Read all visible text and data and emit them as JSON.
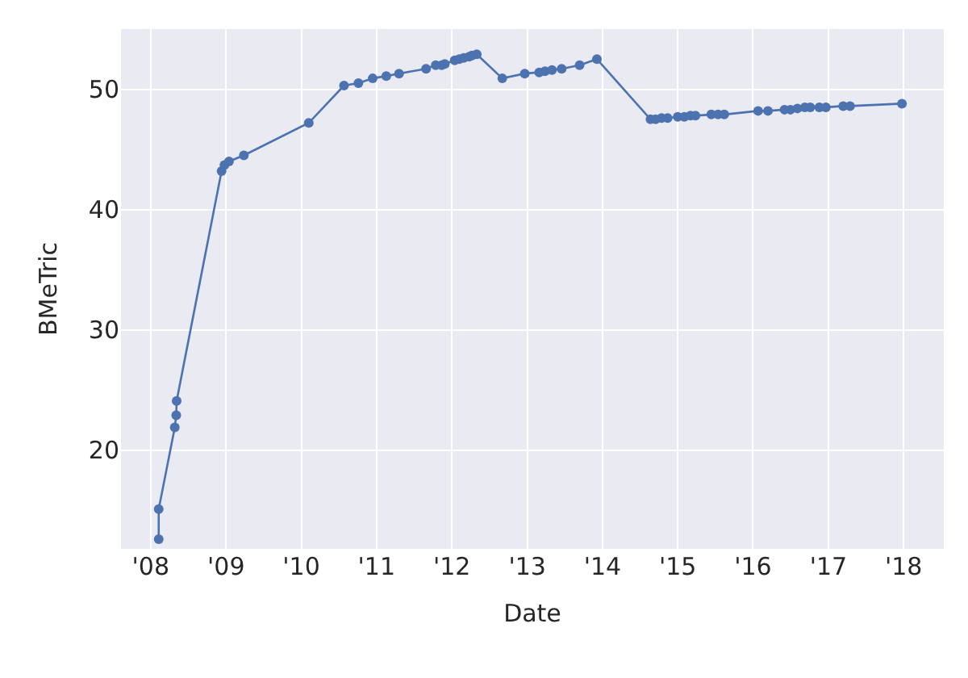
{
  "chart_data": {
    "type": "line",
    "xlabel": "Date",
    "ylabel": "BMeTric",
    "marker": "circle",
    "line_style": "solid",
    "grid": true,
    "x": [
      "2008-02-09",
      "2008-02-09",
      "2008-04-27",
      "2008-05-04",
      "2008-05-06",
      "2008-12-10",
      "2008-12-24",
      "2009-01-15",
      "2009-03-28",
      "2010-02-06",
      "2010-07-27",
      "2010-10-05",
      "2010-12-13",
      "2011-02-17",
      "2011-04-20",
      "2011-08-29",
      "2011-10-15",
      "2011-11-13",
      "2011-11-28",
      "2012-01-15",
      "2012-02-06",
      "2012-02-28",
      "2012-03-25",
      "2012-04-08",
      "2012-05-01",
      "2012-09-02",
      "2012-12-20",
      "2013-02-28",
      "2013-03-28",
      "2013-05-01",
      "2013-06-17",
      "2013-09-12",
      "2013-12-05",
      "2014-08-22",
      "2014-09-16",
      "2014-10-15",
      "2014-11-13",
      "2015-01-01",
      "2015-02-02",
      "2015-03-04",
      "2015-03-28",
      "2015-06-13",
      "2015-07-16",
      "2015-08-15",
      "2016-01-26",
      "2016-03-14",
      "2016-06-02",
      "2016-07-01",
      "2016-08-04",
      "2016-09-09",
      "2016-10-05",
      "2016-11-18",
      "2016-12-20",
      "2017-03-14",
      "2017-04-16",
      "2017-12-24"
    ],
    "series": [
      {
        "color": "#4c72b0",
        "values": [
          12.6,
          15.1,
          21.9,
          22.9,
          24.1,
          43.2,
          43.7,
          44.0,
          44.5,
          47.2,
          50.3,
          50.5,
          50.9,
          51.1,
          51.3,
          51.7,
          52.0,
          52.0,
          52.1,
          52.4,
          52.5,
          52.6,
          52.7,
          52.8,
          52.9,
          50.9,
          51.3,
          51.4,
          51.5,
          51.6,
          51.7,
          52.0,
          52.5,
          47.5,
          47.5,
          47.6,
          47.6,
          47.7,
          47.7,
          47.8,
          47.8,
          47.9,
          47.9,
          47.9,
          48.2,
          48.2,
          48.3,
          48.3,
          48.4,
          48.5,
          48.5,
          48.5,
          48.5,
          48.6,
          48.6,
          48.8
        ]
      }
    ],
    "xlim": [
      "2007-08-10",
      "2018-07-15"
    ],
    "xticks": [
      {
        "value": "2008-01-01",
        "label": "'08"
      },
      {
        "value": "2009-01-01",
        "label": "'09"
      },
      {
        "value": "2010-01-01",
        "label": "'10"
      },
      {
        "value": "2011-01-01",
        "label": "'11"
      },
      {
        "value": "2012-01-01",
        "label": "'12"
      },
      {
        "value": "2013-01-01",
        "label": "'13"
      },
      {
        "value": "2014-01-01",
        "label": "'14"
      },
      {
        "value": "2015-01-01",
        "label": "'15"
      },
      {
        "value": "2016-01-01",
        "label": "'16"
      },
      {
        "value": "2017-01-01",
        "label": "'17"
      },
      {
        "value": "2018-01-01",
        "label": "'18"
      }
    ],
    "ylim": [
      11.8,
      55
    ],
    "yticks": [
      20,
      30,
      40,
      50
    ]
  }
}
